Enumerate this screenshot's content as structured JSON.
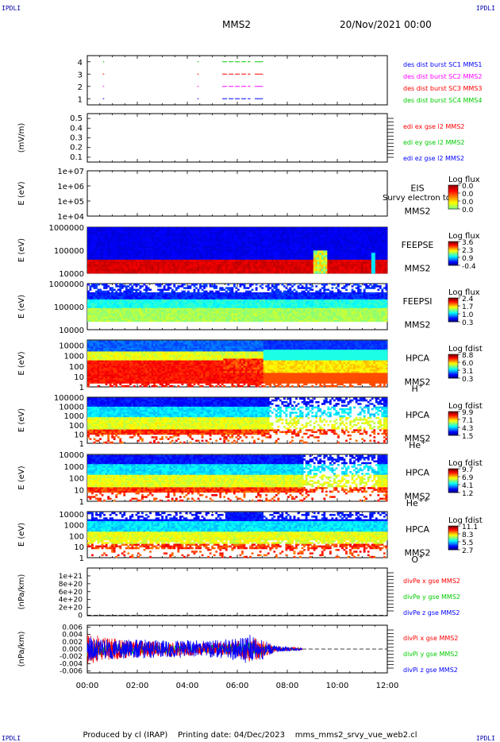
{
  "corners": {
    "tl": "IPDLI",
    "tr": "IPDLI",
    "bl": "IPDLI",
    "br": "IPDLI"
  },
  "header": {
    "spacecraft": "MMS2",
    "date": "20/Nov/2021 00:00"
  },
  "footer": {
    "producer": "Produced by cl (IRAP)",
    "printing": "Printing date: 04/Dec/2023",
    "file": "mms_mms2_srvy_vue_web2.cl"
  },
  "colors": {
    "c1": "#0000ff",
    "c2": "#ff00ff",
    "c3": "#ff0000",
    "c4": "#00cc00",
    "black": "#000000"
  },
  "time_axis": {
    "ticks": [
      "00:00",
      "02:00",
      "04:00",
      "06:00",
      "08:00",
      "10:00",
      "12:00"
    ],
    "range_hours": [
      0,
      12
    ]
  },
  "chart_data": [
    {
      "id": "des",
      "type": "scatter",
      "ylim": [
        0.5,
        4.5
      ],
      "yticks": [
        "1",
        "2",
        "3",
        "4"
      ],
      "series": [
        {
          "name": "des dist burst SC1 MMS1",
          "color": "#0000ff",
          "y": 1,
          "segments": [
            [
              0.62,
              0.65
            ],
            [
              4.4,
              4.43
            ],
            [
              5.4,
              6.5
            ],
            [
              6.7,
              7.0
            ]
          ]
        },
        {
          "name": "des dist burst SC2 MMS2",
          "color": "#ff00ff",
          "y": 2,
          "segments": [
            [
              0.62,
              0.65
            ],
            [
              4.4,
              4.43
            ],
            [
              5.4,
              6.5
            ],
            [
              6.7,
              7.0
            ]
          ]
        },
        {
          "name": "des dist burst SC3 MMS3",
          "color": "#ff0000",
          "y": 3,
          "segments": [
            [
              0.62,
              0.65
            ],
            [
              4.4,
              4.43
            ],
            [
              5.4,
              6.5
            ],
            [
              6.7,
              7.0
            ]
          ]
        },
        {
          "name": "des dist burst SC4 MMS4",
          "color": "#00cc00",
          "y": 4,
          "segments": [
            [
              0.62,
              0.65
            ],
            [
              4.4,
              4.43
            ],
            [
              5.4,
              6.5
            ],
            [
              6.7,
              7.0
            ]
          ]
        }
      ]
    },
    {
      "id": "edi",
      "type": "line",
      "ylabel": "(mV/m)",
      "ylim": [
        0.05,
        0.55
      ],
      "yticks": [
        "0.5",
        "0.4",
        "0.3",
        "0.2",
        "0.1"
      ],
      "ytick_values": [
        0.5,
        0.4,
        0.3,
        0.2,
        0.1
      ],
      "series": [
        {
          "name": "edi ex gse l2 MMS2",
          "color": "#ff0000",
          "values": []
        },
        {
          "name": "edi ey gse l2 MMS2",
          "color": "#00cc00",
          "values": []
        },
        {
          "name": "edi ez gse l2 MMS2",
          "color": "#0000ff",
          "values": []
        }
      ]
    },
    {
      "id": "eis",
      "type": "heatmap",
      "ylabel": "E (eV)",
      "yticks": [
        "1e+07",
        "1e+06",
        "1e+05",
        "1e+04"
      ],
      "ylog": [
        4,
        7
      ],
      "instrument": "EIS",
      "instrument_overlay": "Survy electron to",
      "sc": "MMS2",
      "cb_title": "Log flux",
      "cb_labels": [
        "0.0",
        "0.0",
        "0.0",
        "0.0"
      ],
      "cmin": 0,
      "cmax": 0
    },
    {
      "id": "feepse",
      "type": "heatmap",
      "ylabel": "E (eV)",
      "yticks": [
        "1000000",
        "100000",
        "10000"
      ],
      "ylog": [
        4,
        6
      ],
      "instrument": "FEEPSE",
      "sc": "MMS2",
      "cb_title": "Log flux",
      "cb_labels": [
        "3.6",
        "2.3",
        "0.9",
        "-0.4"
      ],
      "cmin": -0.4,
      "cmax": 3.6
    },
    {
      "id": "feepsi",
      "type": "heatmap",
      "ylabel": "E (eV)",
      "yticks": [
        "1000000",
        "100000",
        "10000"
      ],
      "ylog": [
        4,
        6
      ],
      "instrument": "FEEPSI",
      "sc": "MMS2",
      "cb_title": "Log flux",
      "cb_labels": [
        "2.4",
        "1.7",
        "1.0",
        "0.3"
      ],
      "cmin": 0.3,
      "cmax": 2.4
    },
    {
      "id": "hpca_h",
      "type": "heatmap",
      "ylabel": "E (eV)",
      "yticks": [
        "10000",
        "1000",
        "100",
        "10",
        "1"
      ],
      "ylog": [
        0,
        4.5
      ],
      "instrument": "HPCA",
      "sc": "MMS2",
      "species": "H",
      "species_sup": "+",
      "cb_title": "Log fdist",
      "cb_labels": [
        "8.8",
        "6.0",
        "3.1",
        "0.3"
      ],
      "cmin": 0.3,
      "cmax": 8.8
    },
    {
      "id": "hpca_he",
      "type": "heatmap",
      "ylabel": "E (eV)",
      "yticks": [
        "100000",
        "10000",
        "1000",
        "100",
        "10",
        "1"
      ],
      "ylog": [
        0,
        5
      ],
      "instrument": "HPCA",
      "sc": "MMS2",
      "species": "He",
      "species_sup": "+",
      "cb_title": "Log fdist",
      "cb_labels": [
        "9.9",
        "7.1",
        "4.3",
        "1.5"
      ],
      "cmin": 1.5,
      "cmax": 9.9
    },
    {
      "id": "hpca_hepp",
      "type": "heatmap",
      "ylabel": "E (eV)",
      "yticks": [
        "10000",
        "1000",
        "100",
        "10",
        "1"
      ],
      "ylog": [
        0,
        4
      ],
      "instrument": "HPCA",
      "sc": "MMS2",
      "species": "He",
      "species_sup": "++",
      "cb_title": "Log fdist",
      "cb_labels": [
        "9.7",
        "6.9",
        "4.1",
        "1.2"
      ],
      "cmin": 1.2,
      "cmax": 9.7
    },
    {
      "id": "hpca_o",
      "type": "heatmap",
      "ylabel": "E (eV)",
      "yticks": [
        "10000",
        "1000",
        "100",
        "10",
        "1"
      ],
      "ylog": [
        0,
        4.2
      ],
      "instrument": "HPCA",
      "sc": "MMS2",
      "species": "O",
      "species_sup": "+",
      "cb_title": "Log fdist",
      "cb_labels": [
        "11.1",
        "8.3",
        "5.5",
        "2.7"
      ],
      "cmin": 2.7,
      "cmax": 11.1
    },
    {
      "id": "divpe",
      "type": "line",
      "ylabel": "(nPa/km)",
      "ylim": [
        -1e+19,
        1.2e+21
      ],
      "yticks": [
        "1e+21",
        "8e+20",
        "6e+20",
        "4e+20",
        "2e+20",
        "0"
      ],
      "ytick_values": [
        1e+21,
        8e+20,
        6e+20,
        4e+20,
        2e+20,
        0
      ],
      "series": [
        {
          "name": "divPe x gse MMS2",
          "color": "#ff0000",
          "values": []
        },
        {
          "name": "divPe y gse MMS2",
          "color": "#00cc00",
          "values": []
        },
        {
          "name": "divPe z gse MMS2",
          "color": "#0000ff",
          "values": []
        }
      ]
    },
    {
      "id": "divpi",
      "type": "line",
      "ylabel": "(nPa/km)",
      "ylim": [
        -0.0065,
        0.0065
      ],
      "yticks": [
        "0.006",
        "0.004",
        "0.002",
        "0.000",
        "-0.002",
        "-0.004",
        "-0.006"
      ],
      "ytick_values": [
        0.006,
        0.004,
        0.002,
        0,
        -0.002,
        -0.004,
        -0.006
      ],
      "data_end_hour": 8.6,
      "series": [
        {
          "name": "divPi x gse MMS2",
          "color": "#ff0000",
          "x": [
            0,
            0.5,
            1,
            1.5,
            2,
            2.5,
            3,
            3.5,
            4,
            4.5,
            5,
            5.5,
            6,
            6.5,
            7,
            7.5,
            8,
            8.6
          ],
          "amplitude": [
            0.0045,
            0.0035,
            0.003,
            0.0025,
            0.0022,
            0.0022,
            0.002,
            0.002,
            0.0018,
            0.0018,
            0.0017,
            0.0018,
            0.0022,
            0.0035,
            0.0025,
            0.0008,
            0.0005,
            0.0003
          ]
        },
        {
          "name": "divPi y gse MMS2",
          "color": "#00cc00",
          "x": [
            0,
            0.5,
            1,
            1.5,
            2,
            2.5,
            3,
            3.5,
            4,
            4.5,
            5,
            5.5,
            6,
            6.5,
            7,
            7.5,
            8,
            8.6
          ],
          "amplitude": [
            0.0025,
            0.002,
            0.0018,
            0.0015,
            0.0014,
            0.0014,
            0.0013,
            0.0013,
            0.0012,
            0.0012,
            0.0012,
            0.0012,
            0.0014,
            0.002,
            0.0015,
            0.0006,
            0.0004,
            0.0002
          ]
        },
        {
          "name": "divPi z gse MMS2",
          "color": "#0000ff",
          "x": [
            0,
            0.5,
            1,
            1.5,
            2,
            2.5,
            3,
            3.5,
            4,
            4.5,
            5,
            5.5,
            6,
            6.5,
            7,
            7.5,
            8,
            8.6
          ],
          "amplitude": [
            0.0035,
            0.003,
            0.0028,
            0.0026,
            0.0026,
            0.0025,
            0.0024,
            0.0024,
            0.0024,
            0.0024,
            0.0024,
            0.0026,
            0.003,
            0.0042,
            0.003,
            0.001,
            0.0006,
            0.0003
          ]
        }
      ]
    }
  ]
}
